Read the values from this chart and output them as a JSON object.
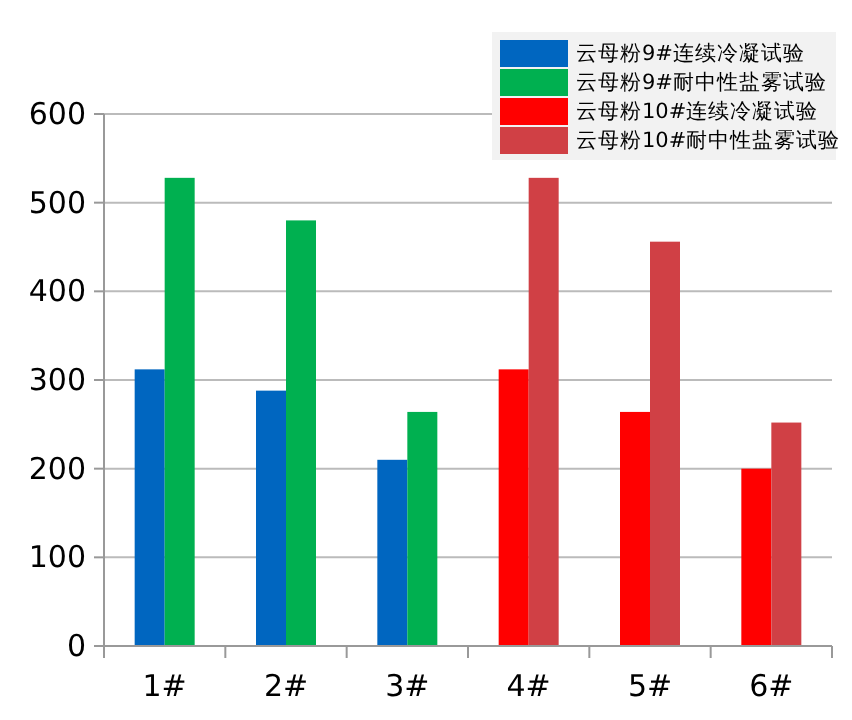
{
  "chart_data": {
    "type": "bar",
    "categories": [
      "1#",
      "2#",
      "3#",
      "4#",
      "5#",
      "6#"
    ],
    "series": [
      {
        "name": "云母粉9#连续冷凝试验",
        "color": "#0066c0",
        "values": [
          312,
          288,
          210,
          null,
          null,
          null
        ]
      },
      {
        "name": "云母粉9#耐中性盐雾试验",
        "color": "#00b050",
        "values": [
          528,
          480,
          264,
          null,
          null,
          null
        ]
      },
      {
        "name": "云母粉10#连续冷凝试验",
        "color": "#ff0000",
        "values": [
          null,
          null,
          null,
          312,
          264,
          200
        ]
      },
      {
        "name": "云母粉10#耐中性盐雾试验",
        "color": "#d04045",
        "values": [
          null,
          null,
          null,
          528,
          456,
          252
        ]
      }
    ],
    "ylim": [
      0,
      600
    ],
    "yticks": [
      0,
      100,
      200,
      300,
      400,
      500,
      600
    ],
    "grid": "y",
    "legend": "top right"
  }
}
